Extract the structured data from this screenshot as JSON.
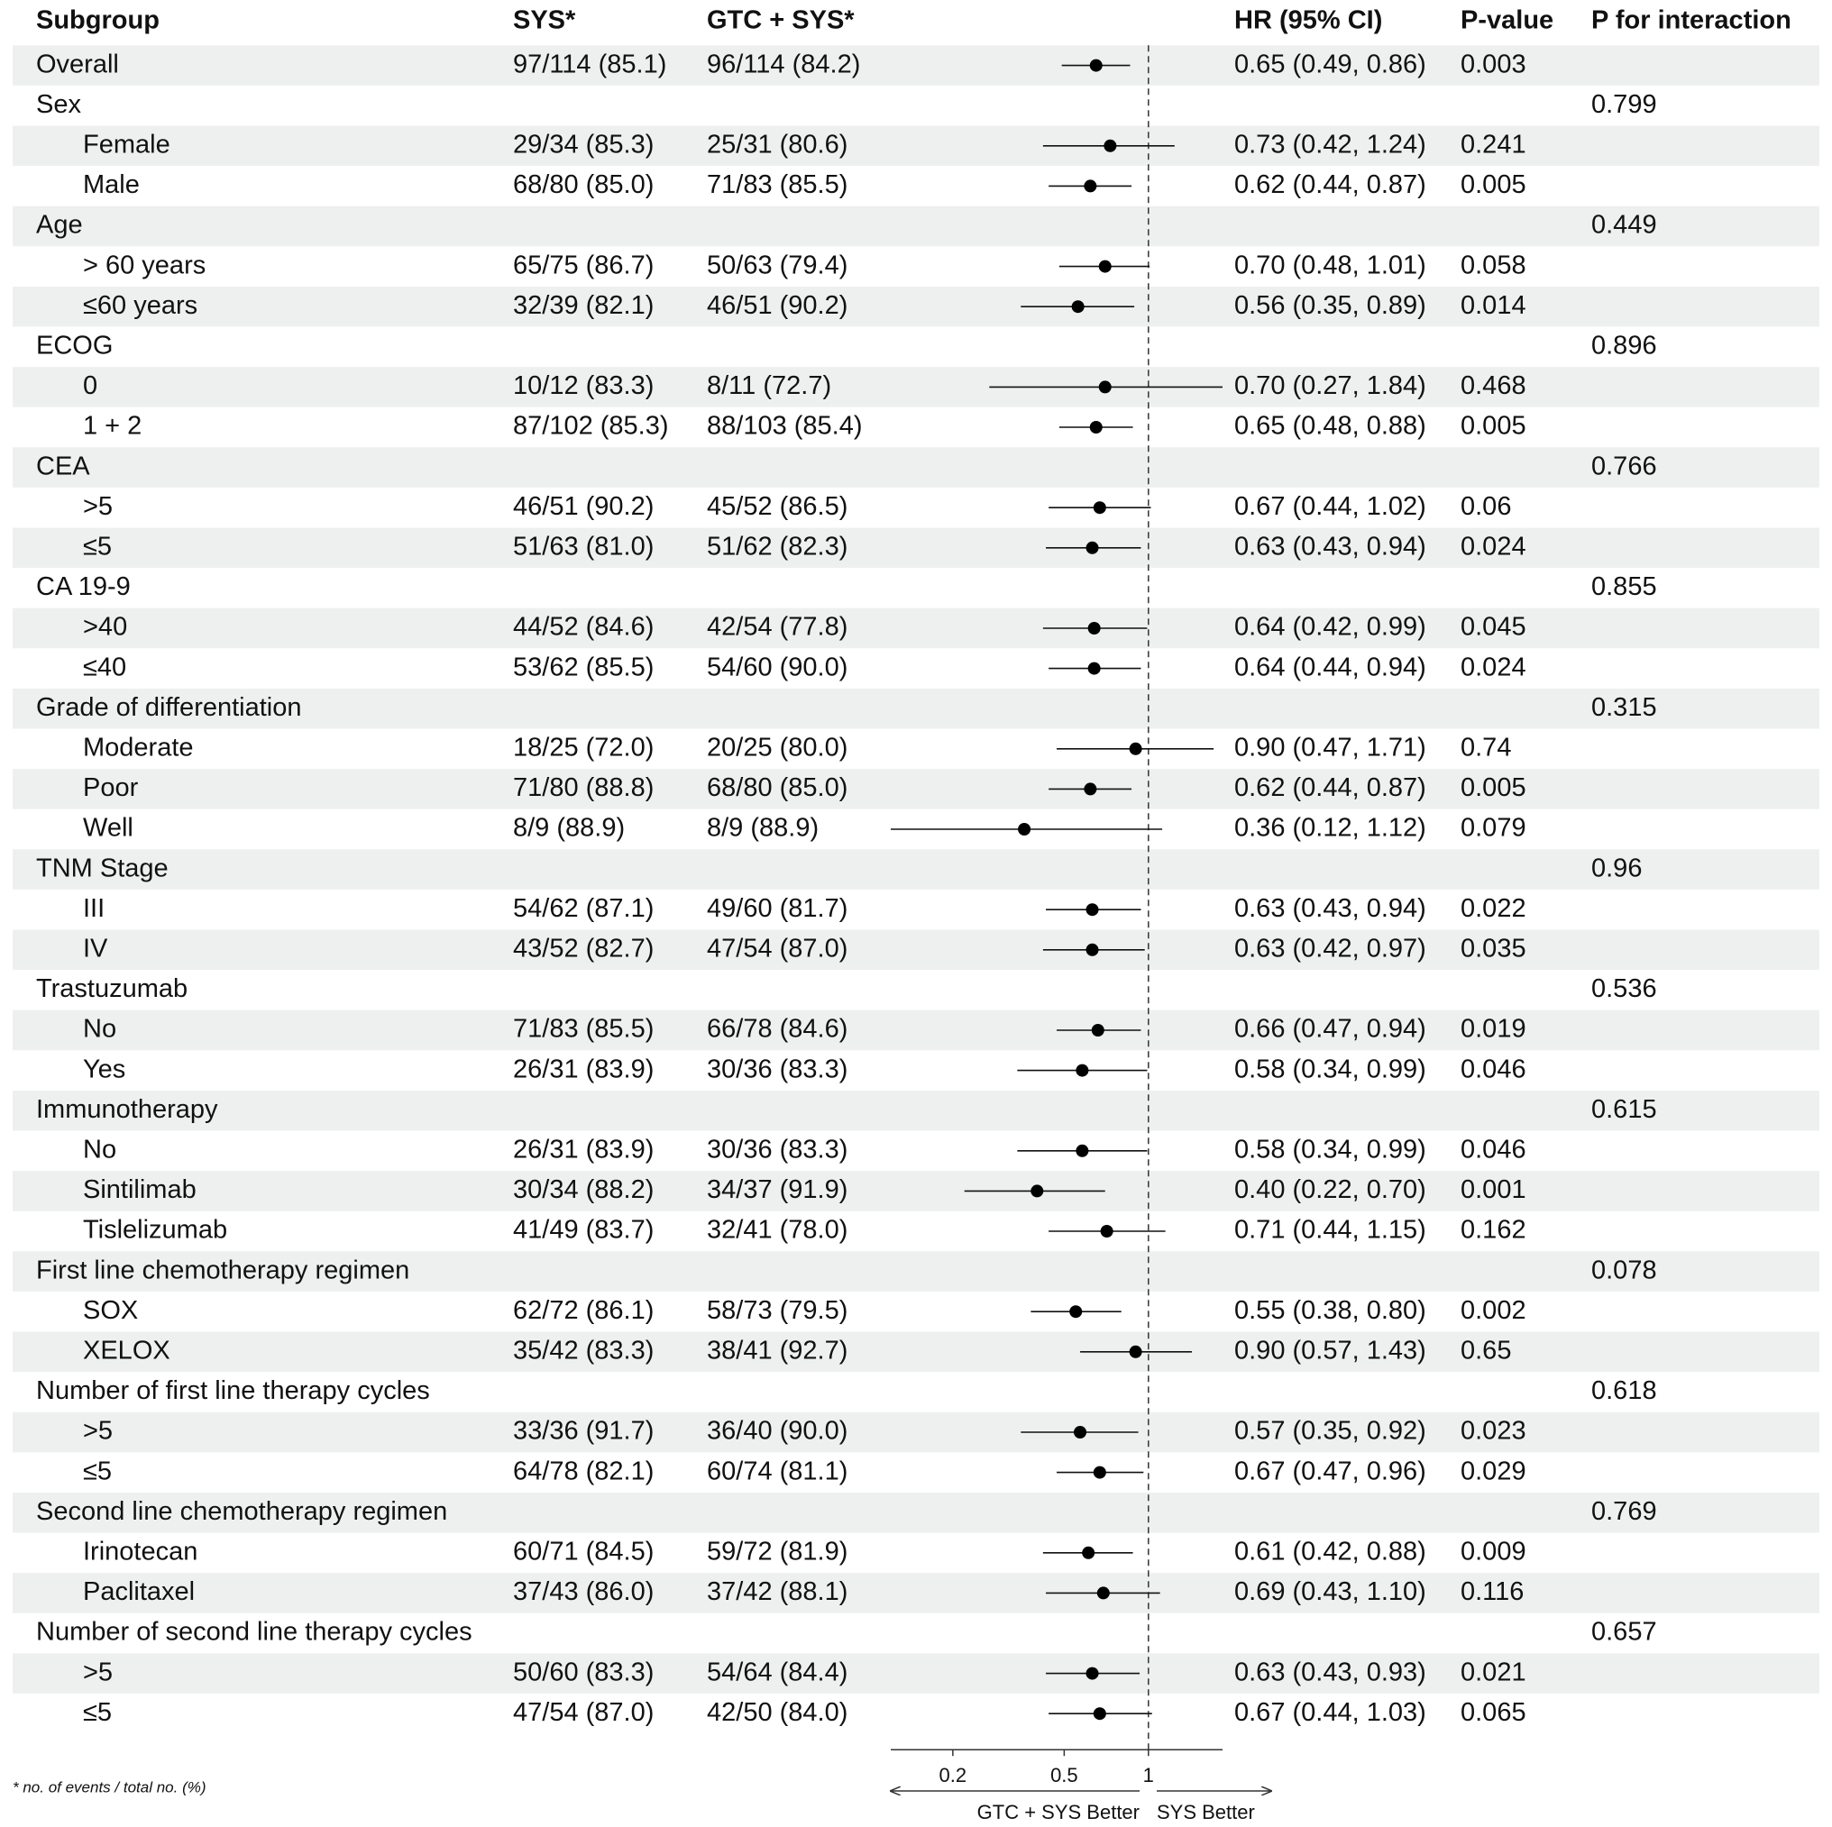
{
  "chart_data": {
    "type": "forest",
    "columns": {
      "subgroup": "Subgroup",
      "sys": "SYS*",
      "gtc_sys": "GTC + SYS*",
      "hr_ci": "HR (95% CI)",
      "p": "P-value",
      "p_interaction": "P for interaction"
    },
    "xscale": "log",
    "xlim": [
      0.12,
      1.84
    ],
    "xticks": [
      0.2,
      0.5,
      1
    ],
    "reference": 1,
    "stripe": true,
    "point_color": "#000000",
    "footnote": "* no. of events / total no. (%)",
    "arrow_left_label": "GTC + SYS Better",
    "arrow_right_label": "SYS Better",
    "rows": [
      {
        "label": "Overall",
        "indent": false,
        "sys": "97/114 (85.1)",
        "gtc_sys": "96/114 (84.2)",
        "hr": 0.65,
        "lower": 0.49,
        "upper": 0.86,
        "hr_ci": "0.65 (0.49, 0.86)",
        "p": 0.003
      },
      {
        "label": "Sex",
        "indent": false,
        "p_interaction": 0.799
      },
      {
        "label": "Female",
        "indent": true,
        "sys": "29/34 (85.3)",
        "gtc_sys": "25/31 (80.6)",
        "hr": 0.73,
        "lower": 0.42,
        "upper": 1.24,
        "hr_ci": "0.73 (0.42, 1.24)",
        "p": 0.241
      },
      {
        "label": "Male",
        "indent": true,
        "sys": "68/80 (85.0)",
        "gtc_sys": "71/83 (85.5)",
        "hr": 0.62,
        "lower": 0.44,
        "upper": 0.87,
        "hr_ci": "0.62 (0.44, 0.87)",
        "p": 0.005
      },
      {
        "label": "Age",
        "indent": false,
        "p_interaction": 0.449
      },
      {
        "label": "> 60 years",
        "indent": true,
        "sys": "65/75 (86.7)",
        "gtc_sys": "50/63 (79.4)",
        "hr": 0.7,
        "lower": 0.48,
        "upper": 1.01,
        "hr_ci": "0.70 (0.48, 1.01)",
        "p": 0.058
      },
      {
        "label": "≤60 years",
        "indent": true,
        "sys": "32/39 (82.1)",
        "gtc_sys": "46/51 (90.2)",
        "hr": 0.56,
        "lower": 0.35,
        "upper": 0.89,
        "hr_ci": "0.56 (0.35, 0.89)",
        "p": 0.014
      },
      {
        "label": "ECOG",
        "indent": false,
        "p_interaction": 0.896
      },
      {
        "label": "0",
        "indent": true,
        "sys": "10/12 (83.3)",
        "gtc_sys": "8/11 (72.7)",
        "hr": 0.7,
        "lower": 0.27,
        "upper": 1.84,
        "hr_ci": "0.70 (0.27, 1.84)",
        "p": 0.468
      },
      {
        "label": "1 + 2",
        "indent": true,
        "sys": "87/102 (85.3)",
        "gtc_sys": "88/103 (85.4)",
        "hr": 0.65,
        "lower": 0.48,
        "upper": 0.88,
        "hr_ci": "0.65 (0.48, 0.88)",
        "p": 0.005
      },
      {
        "label": "CEA",
        "indent": false,
        "p_interaction": 0.766
      },
      {
        "label": ">5",
        "indent": true,
        "sys": "46/51 (90.2)",
        "gtc_sys": "45/52 (86.5)",
        "hr": 0.67,
        "lower": 0.44,
        "upper": 1.02,
        "hr_ci": "0.67 (0.44, 1.02)",
        "p": 0.06
      },
      {
        "label": "≤5",
        "indent": true,
        "sys": "51/63 (81.0)",
        "gtc_sys": "51/62 (82.3)",
        "hr": 0.63,
        "lower": 0.43,
        "upper": 0.94,
        "hr_ci": "0.63 (0.43, 0.94)",
        "p": 0.024
      },
      {
        "label": "CA 19-9",
        "indent": false,
        "p_interaction": 0.855
      },
      {
        "label": ">40",
        "indent": true,
        "sys": "44/52 (84.6)",
        "gtc_sys": "42/54 (77.8)",
        "hr": 0.64,
        "lower": 0.42,
        "upper": 0.99,
        "hr_ci": "0.64 (0.42, 0.99)",
        "p": 0.045
      },
      {
        "label": "≤40",
        "indent": true,
        "sys": "53/62 (85.5)",
        "gtc_sys": "54/60 (90.0)",
        "hr": 0.64,
        "lower": 0.44,
        "upper": 0.94,
        "hr_ci": "0.64 (0.44, 0.94)",
        "p": 0.024
      },
      {
        "label": "Grade of differentiation",
        "indent": false,
        "p_interaction": 0.315
      },
      {
        "label": "Moderate",
        "indent": true,
        "sys": "18/25 (72.0)",
        "gtc_sys": "20/25 (80.0)",
        "hr": 0.9,
        "lower": 0.47,
        "upper": 1.71,
        "hr_ci": "0.90 (0.47, 1.71)",
        "p": 0.74
      },
      {
        "label": "Poor",
        "indent": true,
        "sys": "71/80 (88.8)",
        "gtc_sys": "68/80 (85.0)",
        "hr": 0.62,
        "lower": 0.44,
        "upper": 0.87,
        "hr_ci": "0.62 (0.44, 0.87)",
        "p": 0.005
      },
      {
        "label": "Well",
        "indent": true,
        "sys": "8/9 (88.9)",
        "gtc_sys": "8/9 (88.9)",
        "hr": 0.36,
        "lower": 0.12,
        "upper": 1.12,
        "hr_ci": "0.36 (0.12, 1.12)",
        "p": 0.079
      },
      {
        "label": "TNM Stage",
        "indent": false,
        "p_interaction": 0.96
      },
      {
        "label": "III",
        "indent": true,
        "sys": "54/62 (87.1)",
        "gtc_sys": "49/60 (81.7)",
        "hr": 0.63,
        "lower": 0.43,
        "upper": 0.94,
        "hr_ci": "0.63 (0.43, 0.94)",
        "p": 0.022
      },
      {
        "label": "IV",
        "indent": true,
        "sys": "43/52 (82.7)",
        "gtc_sys": "47/54 (87.0)",
        "hr": 0.63,
        "lower": 0.42,
        "upper": 0.97,
        "hr_ci": "0.63 (0.42, 0.97)",
        "p": 0.035
      },
      {
        "label": "Trastuzumab",
        "indent": false,
        "p_interaction": 0.536
      },
      {
        "label": "No",
        "indent": true,
        "sys": "71/83 (85.5)",
        "gtc_sys": "66/78 (84.6)",
        "hr": 0.66,
        "lower": 0.47,
        "upper": 0.94,
        "hr_ci": "0.66 (0.47, 0.94)",
        "p": 0.019
      },
      {
        "label": "Yes",
        "indent": true,
        "sys": "26/31 (83.9)",
        "gtc_sys": "30/36 (83.3)",
        "hr": 0.58,
        "lower": 0.34,
        "upper": 0.99,
        "hr_ci": "0.58 (0.34, 0.99)",
        "p": 0.046
      },
      {
        "label": "Immunotherapy",
        "indent": false,
        "p_interaction": 0.615
      },
      {
        "label": "No",
        "indent": true,
        "sys": "26/31 (83.9)",
        "gtc_sys": "30/36 (83.3)",
        "hr": 0.58,
        "lower": 0.34,
        "upper": 0.99,
        "hr_ci": "0.58 (0.34, 0.99)",
        "p": 0.046
      },
      {
        "label": "Sintilimab",
        "indent": true,
        "sys": "30/34 (88.2)",
        "gtc_sys": "34/37 (91.9)",
        "hr": 0.4,
        "lower": 0.22,
        "upper": 0.7,
        "hr_ci": "0.40 (0.22, 0.70)",
        "p": 0.001
      },
      {
        "label": "Tislelizumab",
        "indent": true,
        "sys": "41/49 (83.7)",
        "gtc_sys": "32/41 (78.0)",
        "hr": 0.71,
        "lower": 0.44,
        "upper": 1.15,
        "hr_ci": "0.71 (0.44, 1.15)",
        "p": 0.162
      },
      {
        "label": "First line chemotherapy regimen",
        "indent": false,
        "p_interaction": 0.078
      },
      {
        "label": "SOX",
        "indent": true,
        "sys": "62/72 (86.1)",
        "gtc_sys": "58/73 (79.5)",
        "hr": 0.55,
        "lower": 0.38,
        "upper": 0.8,
        "hr_ci": "0.55 (0.38, 0.80)",
        "p": 0.002
      },
      {
        "label": "XELOX",
        "indent": true,
        "sys": "35/42 (83.3)",
        "gtc_sys": "38/41 (92.7)",
        "hr": 0.9,
        "lower": 0.57,
        "upper": 1.43,
        "hr_ci": "0.90 (0.57, 1.43)",
        "p": 0.65
      },
      {
        "label": "Number of first line therapy cycles",
        "indent": false,
        "p_interaction": 0.618
      },
      {
        "label": ">5",
        "indent": true,
        "sys": "33/36 (91.7)",
        "gtc_sys": "36/40 (90.0)",
        "hr": 0.57,
        "lower": 0.35,
        "upper": 0.92,
        "hr_ci": "0.57 (0.35, 0.92)",
        "p": 0.023
      },
      {
        "label": "≤5",
        "indent": true,
        "sys": "64/78 (82.1)",
        "gtc_sys": "60/74 (81.1)",
        "hr": 0.67,
        "lower": 0.47,
        "upper": 0.96,
        "hr_ci": "0.67 (0.47, 0.96)",
        "p": 0.029
      },
      {
        "label": "Second line chemotherapy regimen",
        "indent": false,
        "p_interaction": 0.769
      },
      {
        "label": "Irinotecan",
        "indent": true,
        "sys": "60/71 (84.5)",
        "gtc_sys": "59/72 (81.9)",
        "hr": 0.61,
        "lower": 0.42,
        "upper": 0.88,
        "hr_ci": "0.61 (0.42, 0.88)",
        "p": 0.009
      },
      {
        "label": "Paclitaxel",
        "indent": true,
        "sys": "37/43 (86.0)",
        "gtc_sys": "37/42 (88.1)",
        "hr": 0.69,
        "lower": 0.43,
        "upper": 1.1,
        "hr_ci": "0.69 (0.43, 1.10)",
        "p": 0.116
      },
      {
        "label": "Number of second line therapy cycles",
        "indent": false,
        "p_interaction": 0.657
      },
      {
        "label": ">5",
        "indent": true,
        "sys": "50/60 (83.3)",
        "gtc_sys": "54/64 (84.4)",
        "hr": 0.63,
        "lower": 0.43,
        "upper": 0.93,
        "hr_ci": "0.63 (0.43, 0.93)",
        "p": 0.021
      },
      {
        "label": "≤5",
        "indent": true,
        "sys": "47/54 (87.0)",
        "gtc_sys": "42/50 (84.0)",
        "hr": 0.67,
        "lower": 0.44,
        "upper": 1.03,
        "hr_ci": "0.67 (0.44, 1.03)",
        "p": 0.065
      }
    ]
  }
}
